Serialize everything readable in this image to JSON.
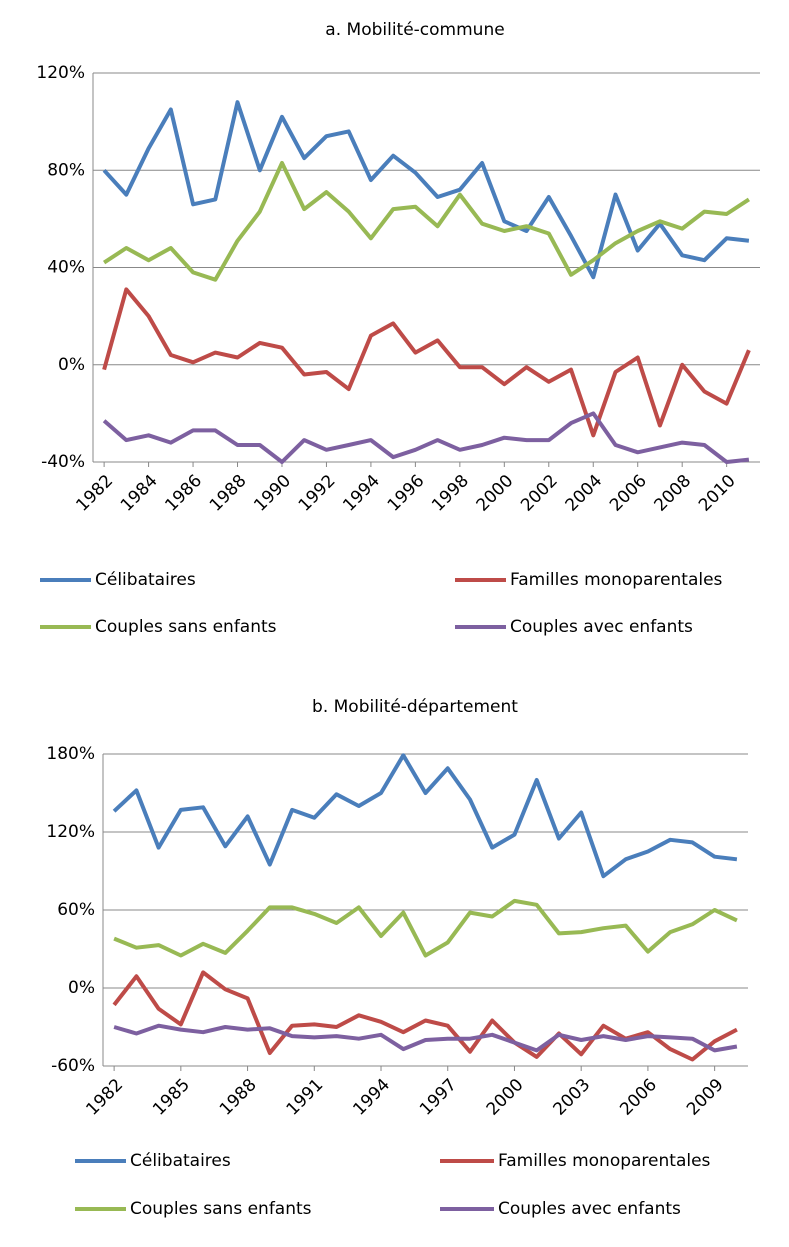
{
  "chart_data": [
    {
      "type": "line",
      "title": "a. Mobilité-commune",
      "x": [
        1982,
        1983,
        1984,
        1985,
        1986,
        1987,
        1988,
        1989,
        1990,
        1991,
        1992,
        1993,
        1994,
        1995,
        1996,
        1997,
        1998,
        1999,
        2000,
        2001,
        2002,
        2003,
        2004,
        2005,
        2006,
        2007,
        2008,
        2009,
        2010,
        2011
      ],
      "xlim": [
        1981.5,
        2011.5
      ],
      "xticks": [
        1982,
        1984,
        1986,
        1988,
        1990,
        1992,
        1994,
        1996,
        1998,
        2000,
        2002,
        2004,
        2006,
        2008,
        2010
      ],
      "ylim": [
        -40,
        120
      ],
      "yticks": [
        {
          "value": -40,
          "label": "-40%"
        },
        {
          "value": 0,
          "label": "0%"
        },
        {
          "value": 40,
          "label": "40%"
        },
        {
          "value": 80,
          "label": "80%"
        },
        {
          "value": 120,
          "label": "120%"
        }
      ],
      "grid": true,
      "series": [
        {
          "name": "Célibataires",
          "color": "#4a7ebb",
          "values": [
            80,
            70,
            89,
            105,
            66,
            68,
            108,
            80,
            102,
            85,
            94,
            96,
            76,
            86,
            79,
            69,
            72,
            83,
            59,
            55,
            69,
            53,
            36,
            70,
            47,
            58,
            45,
            43,
            52,
            51
          ]
        },
        {
          "name": "Familles monoparentales",
          "color": "#be4b48",
          "values": [
            -2,
            31,
            20,
            4,
            1,
            5,
            3,
            9,
            7,
            -4,
            -3,
            -10,
            12,
            17,
            5,
            10,
            -1,
            -1,
            -8,
            -1,
            -7,
            -2,
            -29,
            -3,
            3,
            -25,
            0,
            -11,
            -16,
            6
          ]
        },
        {
          "name": "Couples sans enfants",
          "color": "#98b954",
          "values": [
            42,
            48,
            43,
            48,
            38,
            35,
            51,
            63,
            83,
            64,
            71,
            63,
            52,
            64,
            65,
            57,
            70,
            58,
            55,
            57,
            54,
            37,
            43,
            50,
            55,
            59,
            56,
            63,
            62,
            68
          ]
        },
        {
          "name": "Couples avec enfants",
          "color": "#7d60a0",
          "values": [
            -23,
            -31,
            -29,
            -32,
            -27,
            -27,
            -33,
            -33,
            -40,
            -31,
            -35,
            -33,
            -31,
            -38,
            -35,
            -31,
            -35,
            -33,
            -30,
            -31,
            -31,
            -24,
            -20,
            -33,
            -36,
            -34,
            -32,
            -33,
            -40,
            -39
          ]
        }
      ]
    },
    {
      "type": "line",
      "title": "b. Mobilité-département",
      "x": [
        1982,
        1983,
        1984,
        1985,
        1986,
        1987,
        1988,
        1989,
        1990,
        1991,
        1992,
        1993,
        1994,
        1995,
        1996,
        1997,
        1998,
        1999,
        2000,
        2001,
        2002,
        2003,
        2004,
        2005,
        2006,
        2007,
        2008,
        2009,
        2010
      ],
      "xlim": [
        1981.5,
        2010.5
      ],
      "xticks": [
        1982,
        1985,
        1988,
        1991,
        1994,
        1997,
        2000,
        2003,
        2006,
        2009
      ],
      "ylim": [
        -60,
        180
      ],
      "yticks": [
        {
          "value": -60,
          "label": "-60%"
        },
        {
          "value": 0,
          "label": "0%"
        },
        {
          "value": 60,
          "label": "60%"
        },
        {
          "value": 120,
          "label": "120%"
        },
        {
          "value": 180,
          "label": "180%"
        }
      ],
      "grid": true,
      "series": [
        {
          "name": "Célibataires",
          "color": "#4a7ebb",
          "values": [
            136,
            152,
            108,
            137,
            139,
            109,
            132,
            95,
            137,
            131,
            149,
            140,
            150,
            179,
            150,
            169,
            145,
            108,
            118,
            160,
            115,
            135,
            86,
            99,
            105,
            114,
            112,
            101,
            99
          ]
        },
        {
          "name": "Familles monoparentales",
          "color": "#be4b48",
          "values": [
            -13,
            9,
            -16,
            -28,
            12,
            -1,
            -8,
            -50,
            -29,
            -28,
            -30,
            -21,
            -26,
            -34,
            -25,
            -29,
            -49,
            -25,
            -42,
            -53,
            -35,
            -51,
            -29,
            -39,
            -34,
            -47,
            -55,
            -41,
            -32
          ]
        },
        {
          "name": "Couples sans enfants",
          "color": "#98b954",
          "values": [
            38,
            31,
            33,
            25,
            34,
            27,
            44,
            62,
            62,
            57,
            50,
            62,
            40,
            58,
            25,
            35,
            58,
            55,
            67,
            64,
            42,
            43,
            46,
            48,
            28,
            43,
            49,
            60,
            52
          ]
        },
        {
          "name": "Couples avec enfants",
          "color": "#7d60a0",
          "values": [
            -30,
            -35,
            -29,
            -32,
            -34,
            -30,
            -32,
            -31,
            -37,
            -38,
            -37,
            -39,
            -36,
            -47,
            -40,
            -39,
            -39,
            -36,
            -42,
            -48,
            -36,
            -40,
            -37,
            -40,
            -37,
            -38,
            -39,
            -48,
            -45
          ]
        }
      ]
    }
  ]
}
